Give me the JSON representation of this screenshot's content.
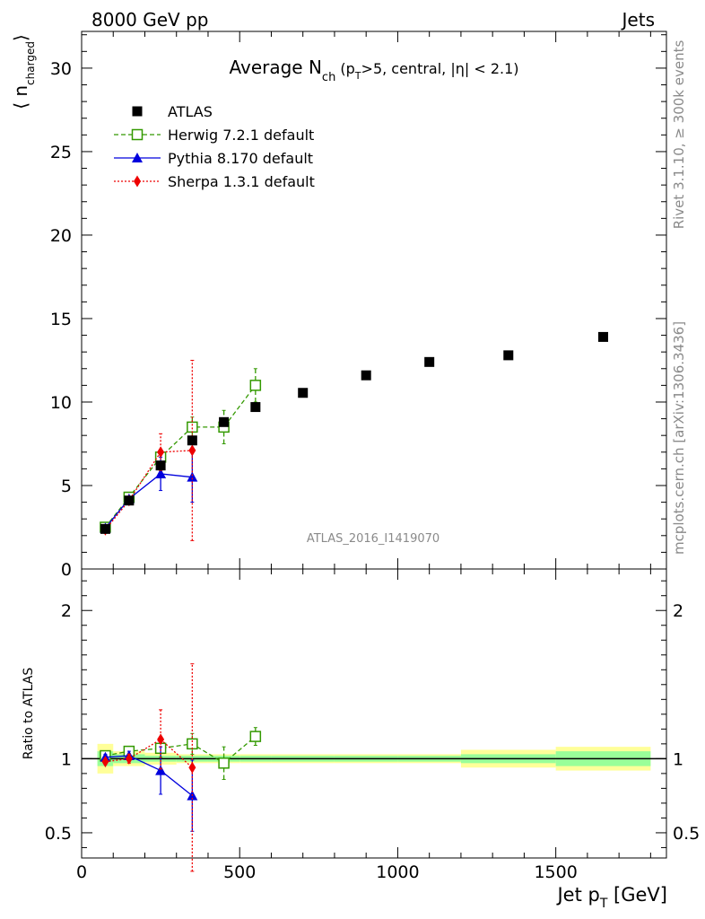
{
  "header": {
    "left": "8000 GeV pp",
    "right": "Jets"
  },
  "side_text": {
    "rivet": "Rivet 3.1.10, ≥ 300k events",
    "mcplots": "mcplots.cern.ch [arXiv:1306.3436]"
  },
  "watermark": "ATLAS_2016_I1419070",
  "colors": {
    "atlas": "#000000",
    "herwig": "#339900",
    "pythia": "#0000dd",
    "sherpa": "#ee0000",
    "band_inner": "#99ff99",
    "band_outer": "#ffff99"
  },
  "chart_data": [
    {
      "type": "scatter",
      "panel": "main",
      "title_parts": {
        "pre": "Average N",
        "sub1": "ch",
        "mid1": " (p",
        "sub2": "T",
        "mid2": ">5, central, |η| < 2.1)"
      },
      "ylabel_parts": {
        "pre": "⟨ n",
        "sub": "charged",
        "post": "⟩"
      },
      "ylim": [
        0,
        32.2
      ],
      "yticks": [
        0,
        5,
        10,
        15,
        20,
        25,
        30
      ],
      "legend_position": "top-left",
      "series": [
        {
          "name": "ATLAS",
          "key": "atlas",
          "x": [
            75,
            150,
            250,
            350,
            450,
            550,
            700,
            900,
            1100,
            1350,
            1650
          ],
          "y": [
            2.4,
            4.1,
            6.2,
            7.7,
            8.8,
            9.7,
            10.55,
            11.6,
            12.4,
            12.8,
            13.9
          ]
        },
        {
          "name": "Herwig 7.2.1 default",
          "key": "herwig",
          "x": [
            75,
            150,
            250,
            350,
            450,
            550
          ],
          "y": [
            2.5,
            4.3,
            6.7,
            8.5,
            8.5,
            11.0
          ],
          "yerr": [
            0.1,
            0.15,
            0.4,
            0.6,
            1.0,
            1.0
          ]
        },
        {
          "name": "Pythia 8.170 default",
          "key": "pythia",
          "x": [
            75,
            150,
            250,
            350
          ],
          "y": [
            2.45,
            4.2,
            5.7,
            5.5
          ],
          "yerr": [
            0.1,
            0.15,
            1.0,
            1.5
          ]
        },
        {
          "name": "Sherpa 1.3.1 default",
          "key": "sherpa",
          "x": [
            75,
            150,
            250,
            350
          ],
          "y": [
            2.35,
            4.1,
            7.0,
            7.1
          ],
          "yerr": [
            0.1,
            0.15,
            1.1,
            5.4
          ]
        }
      ]
    },
    {
      "type": "scatter",
      "panel": "ratio",
      "ylabel": "Ratio to ATLAS",
      "ylim": [
        0.33,
        2.28
      ],
      "yticks": [
        0.5,
        1,
        2
      ],
      "ytick_labels": [
        "0.5",
        "1",
        "2"
      ],
      "xlabel_parts": {
        "pre": "Jet p",
        "sub": "T",
        "post": " [GeV]"
      },
      "xlim": [
        0,
        1850
      ],
      "xticks": [
        0,
        500,
        1000,
        1500
      ],
      "band": {
        "edges": [
          50,
          100,
          200,
          300,
          400,
          500,
          600,
          800,
          1000,
          1200,
          1500,
          1800
        ],
        "inner": [
          0.05,
          0.03,
          0.02,
          0.02,
          0.02,
          0.02,
          0.02,
          0.02,
          0.02,
          0.03,
          0.05
        ],
        "outer": [
          0.1,
          0.05,
          0.04,
          0.03,
          0.03,
          0.03,
          0.03,
          0.03,
          0.03,
          0.06,
          0.08
        ]
      },
      "series": [
        {
          "name": "Herwig 7.2.1 default",
          "key": "herwig",
          "x": [
            75,
            150,
            250,
            350,
            450,
            550
          ],
          "y": [
            1.02,
            1.05,
            1.07,
            1.1,
            0.97,
            1.15
          ],
          "yerr": [
            0.02,
            0.03,
            0.06,
            0.07,
            0.11,
            0.06
          ]
        },
        {
          "name": "Pythia 8.170 default",
          "key": "pythia",
          "x": [
            75,
            150,
            250,
            350
          ],
          "y": [
            1.01,
            1.02,
            0.92,
            0.75
          ],
          "yerr": [
            0.02,
            0.03,
            0.16,
            0.24
          ]
        },
        {
          "name": "Sherpa 1.3.1 default",
          "key": "sherpa",
          "x": [
            75,
            150,
            250,
            350
          ],
          "y": [
            0.98,
            1.0,
            1.13,
            0.94
          ],
          "yerr": [
            0.02,
            0.03,
            0.2,
            0.7
          ]
        }
      ]
    }
  ]
}
